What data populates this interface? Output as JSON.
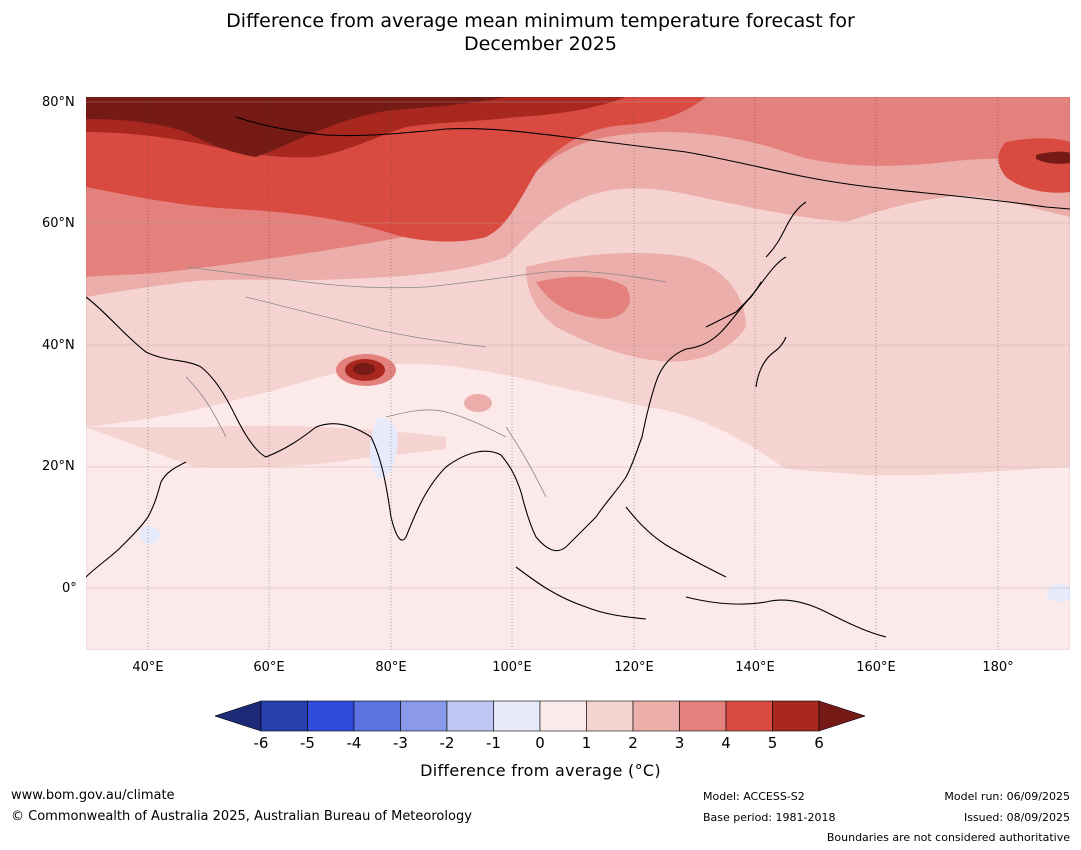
{
  "title": {
    "line1": "Difference from average mean minimum temperature forecast for",
    "line2": "December 2025"
  },
  "map": {
    "region": "Asia",
    "lat_labels": [
      "80°N",
      "60°N",
      "40°N",
      "20°N",
      "0°"
    ],
    "lon_labels": [
      "40°E",
      "60°E",
      "80°E",
      "100°E",
      "120°E",
      "140°E",
      "160°E",
      "180°"
    ]
  },
  "colorbar": {
    "ticks": [
      "-6",
      "-5",
      "-4",
      "-3",
      "-2",
      "-1",
      "0",
      "1",
      "2",
      "3",
      "4",
      "5",
      "6"
    ],
    "colors": [
      "#1c2a78",
      "#2a3fae",
      "#2f4ddc",
      "#5c72e0",
      "#8a99ea",
      "#bfc6f4",
      "#e6eafa",
      "#fceaea",
      "#f5d3d0",
      "#ecaeaa",
      "#e4817c",
      "#d94b41",
      "#a8271f",
      "#761a16"
    ],
    "label": "Difference from average (°C)"
  },
  "footer": {
    "url": "www.bom.gov.au/climate",
    "copyright": "© Commonwealth of Australia 2025, Australian Bureau of Meteorology",
    "model": "Model: ACCESS-S2",
    "base_period": "Base period: 1981-2018",
    "model_run": "Model run: 06/09/2025",
    "issued": "Issued: 08/09/2025",
    "disclaimer": "Boundaries are not considered authoritative"
  }
}
